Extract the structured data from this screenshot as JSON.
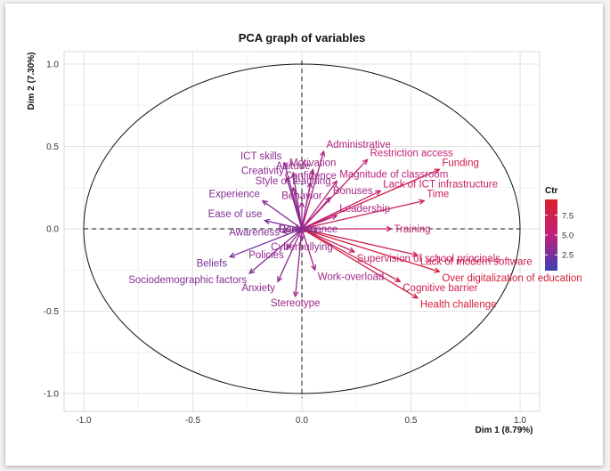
{
  "chart_data": {
    "type": "scatter",
    "title": "PCA graph of variables",
    "xlabel": "Dim 1 (8.79%)",
    "ylabel": "Dim 2 (7.30%)",
    "xlim": [
      -1.0,
      1.0
    ],
    "ylim": [
      -1.0,
      1.0
    ],
    "x_ticks": [
      "-1.0",
      "-0.5",
      "0.0",
      "0.5",
      "1.0"
    ],
    "y_ticks": [
      "-1.0",
      "-0.5",
      "0.0",
      "0.5",
      "1.0"
    ],
    "grid": true,
    "legend": {
      "title": "Ctr",
      "placement": "right",
      "ticks": [
        "2.5",
        "5.0",
        "7.5"
      ],
      "range": [
        0.5,
        9.5
      ],
      "colors": [
        "#3b3fb5",
        "#c0207a",
        "#d8202b"
      ]
    },
    "variables": [
      {
        "name": "ICT skills",
        "x": -0.08,
        "y": 0.4,
        "ctr": 3.2
      },
      {
        "name": "Administrative",
        "x": 0.1,
        "y": 0.47,
        "ctr": 4.5
      },
      {
        "name": "Restriction access",
        "x": 0.3,
        "y": 0.42,
        "ctr": 5.5
      },
      {
        "name": "Attitude",
        "x": -0.04,
        "y": 0.34,
        "ctr": 3.5
      },
      {
        "name": "Motivation",
        "x": 0.05,
        "y": 0.36,
        "ctr": 4.0
      },
      {
        "name": "Funding",
        "x": 0.63,
        "y": 0.36,
        "ctr": 7.8
      },
      {
        "name": "Creativity",
        "x": -0.07,
        "y": 0.31,
        "ctr": 3.3
      },
      {
        "name": "Magnitude of classroom",
        "x": 0.16,
        "y": 0.29,
        "ctr": 4.8
      },
      {
        "name": "Confidence",
        "x": 0.04,
        "y": 0.28,
        "ctr": 3.8
      },
      {
        "name": "Style of teaching",
        "x": -0.04,
        "y": 0.25,
        "ctr": 3.4
      },
      {
        "name": "Lack of ICT infrastructure",
        "x": 0.36,
        "y": 0.23,
        "ctr": 6.0
      },
      {
        "name": "Bonuses",
        "x": 0.13,
        "y": 0.19,
        "ctr": 4.2
      },
      {
        "name": "Experience",
        "x": -0.18,
        "y": 0.17,
        "ctr": 3.0
      },
      {
        "name": "Behavior",
        "x": 0.0,
        "y": 0.16,
        "ctr": 3.6
      },
      {
        "name": "Time",
        "x": 0.56,
        "y": 0.17,
        "ctr": 6.8
      },
      {
        "name": "Leadership",
        "x": 0.16,
        "y": 0.08,
        "ctr": 4.5
      },
      {
        "name": "Ease of use",
        "x": -0.17,
        "y": 0.05,
        "ctr": 2.8
      },
      {
        "name": "Reading",
        "x": -0.02,
        "y": 0.0,
        "ctr": 2.9
      },
      {
        "name": "Performance",
        "x": 0.03,
        "y": 0.0,
        "ctr": 3.2
      },
      {
        "name": "Awareness",
        "x": -0.09,
        "y": -0.02,
        "ctr": 2.9
      },
      {
        "name": "Training",
        "x": 0.41,
        "y": 0.0,
        "ctr": 5.8
      },
      {
        "name": "Cyberbullying",
        "x": 0.0,
        "y": -0.07,
        "ctr": 3.4
      },
      {
        "name": "Policies",
        "x": -0.07,
        "y": -0.12,
        "ctr": 3.6
      },
      {
        "name": "Beliefs",
        "x": -0.33,
        "y": -0.17,
        "ctr": 2.6
      },
      {
        "name": "Supervision of school principals",
        "x": 0.24,
        "y": -0.14,
        "ctr": 6.2
      },
      {
        "name": "Lack of modern software",
        "x": 0.53,
        "y": -0.16,
        "ctr": 7.4
      },
      {
        "name": "Over digitalization of education",
        "x": 0.63,
        "y": -0.26,
        "ctr": 8.5
      },
      {
        "name": "Sociodemographic factors",
        "x": -0.24,
        "y": -0.27,
        "ctr": 3.0
      },
      {
        "name": "Work-overload",
        "x": 0.06,
        "y": -0.25,
        "ctr": 4.0
      },
      {
        "name": "Cognitive barrier",
        "x": 0.45,
        "y": -0.32,
        "ctr": 7.6
      },
      {
        "name": "Anxiety",
        "x": -0.11,
        "y": -0.32,
        "ctr": 3.3
      },
      {
        "name": "Health challenge",
        "x": 0.53,
        "y": -0.42,
        "ctr": 8.4
      },
      {
        "name": "Stereotype",
        "x": -0.03,
        "y": -0.41,
        "ctr": 3.8
      }
    ]
  }
}
